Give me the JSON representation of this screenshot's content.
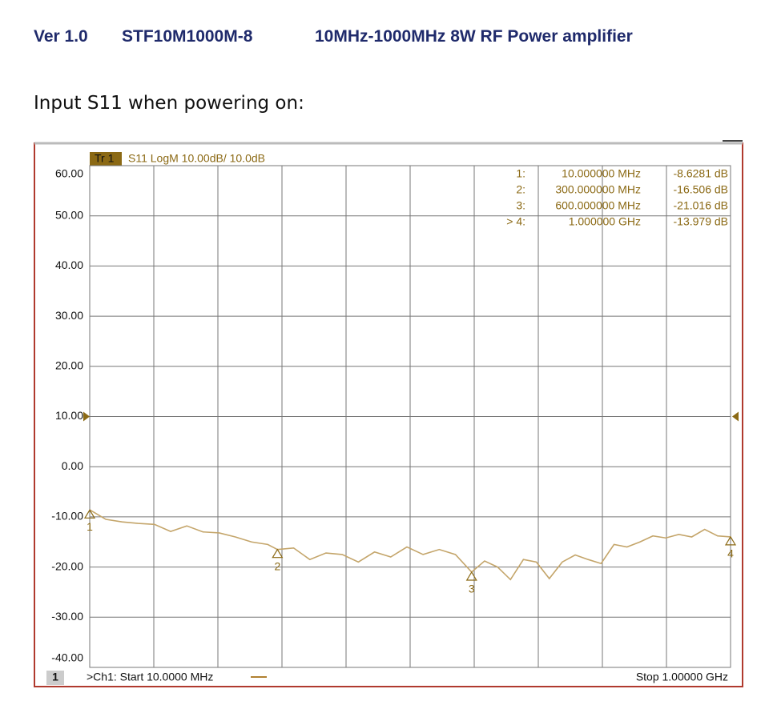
{
  "header": {
    "version": "Ver 1.0",
    "model": "STF10M1000M-8",
    "description": "10MHz-1000MHz 8W RF Power amplifier"
  },
  "caption": "Input S11 when powering on:",
  "chart_data": {
    "type": "line",
    "trace_label": "Tr 1",
    "title": "S11 LogM 10.00dB/ 10.0dB",
    "x": [
      10,
      35,
      60,
      85,
      110,
      135,
      160,
      185,
      210,
      235,
      260,
      285,
      300,
      325,
      350,
      375,
      400,
      425,
      450,
      475,
      500,
      525,
      550,
      575,
      600,
      620,
      640,
      660,
      680,
      700,
      720,
      740,
      760,
      780,
      800,
      820,
      840,
      860,
      880,
      900,
      920,
      940,
      960,
      980,
      1000
    ],
    "values": [
      -8.6,
      -10.5,
      -11,
      -11.3,
      -11.5,
      -12.9,
      -11.8,
      -13,
      -13.2,
      -14,
      -15,
      -15.5,
      -16.5,
      -16.2,
      -18.5,
      -17.2,
      -17.5,
      -19,
      -17,
      -18,
      -16,
      -17.5,
      -16.5,
      -17.5,
      -21,
      -18.8,
      -20,
      -22.5,
      -18.5,
      -19,
      -22.3,
      -19,
      -17.6,
      -18.5,
      -19.3,
      -15.5,
      -16,
      -15,
      -13.8,
      -14.2,
      -13.5,
      -14,
      -12.5,
      -13.8,
      -14
    ],
    "color": "#c4a56a",
    "xlim": [
      10,
      1000
    ],
    "ylim": [
      -40,
      60
    ],
    "yticks": [
      {
        "value": 60,
        "label": "60.00"
      },
      {
        "value": 50,
        "label": "50.00"
      },
      {
        "value": 40,
        "label": "40.00"
      },
      {
        "value": 30,
        "label": "30.00"
      },
      {
        "value": 20,
        "label": "20.00"
      },
      {
        "value": 10,
        "label": "10.00"
      },
      {
        "value": 0,
        "label": "0.00"
      },
      {
        "value": -10,
        "label": "-10.00"
      },
      {
        "value": -20,
        "label": "-20.00"
      },
      {
        "value": -30,
        "label": "-30.00"
      },
      {
        "value": -40,
        "label": "-40.00"
      }
    ],
    "grid": true,
    "reference_level": 10,
    "markers": [
      {
        "number": "1",
        "label": "1:",
        "x": 10,
        "stimulus_label": "10.000000 MHz",
        "value": -8.6281,
        "value_label": "-8.6281 dB"
      },
      {
        "number": "2",
        "label": "2:",
        "x": 300,
        "stimulus_label": "300.000000 MHz",
        "value": -16.506,
        "value_label": "-16.506 dB"
      },
      {
        "number": "3",
        "label": "3:",
        "x": 600,
        "stimulus_label": "600.000000 MHz",
        "value": -21.016,
        "value_label": "-21.016 dB"
      },
      {
        "number": "4",
        "label": "> 4:",
        "x": 1000,
        "stimulus_label": "1.000000 GHz",
        "value": -13.979,
        "value_label": "-13.979 dB"
      }
    ],
    "channel_label": "1",
    "start_label": ">Ch1: Start 10.0000 MHz",
    "stop_label": "Stop 1.00000 GHz"
  }
}
